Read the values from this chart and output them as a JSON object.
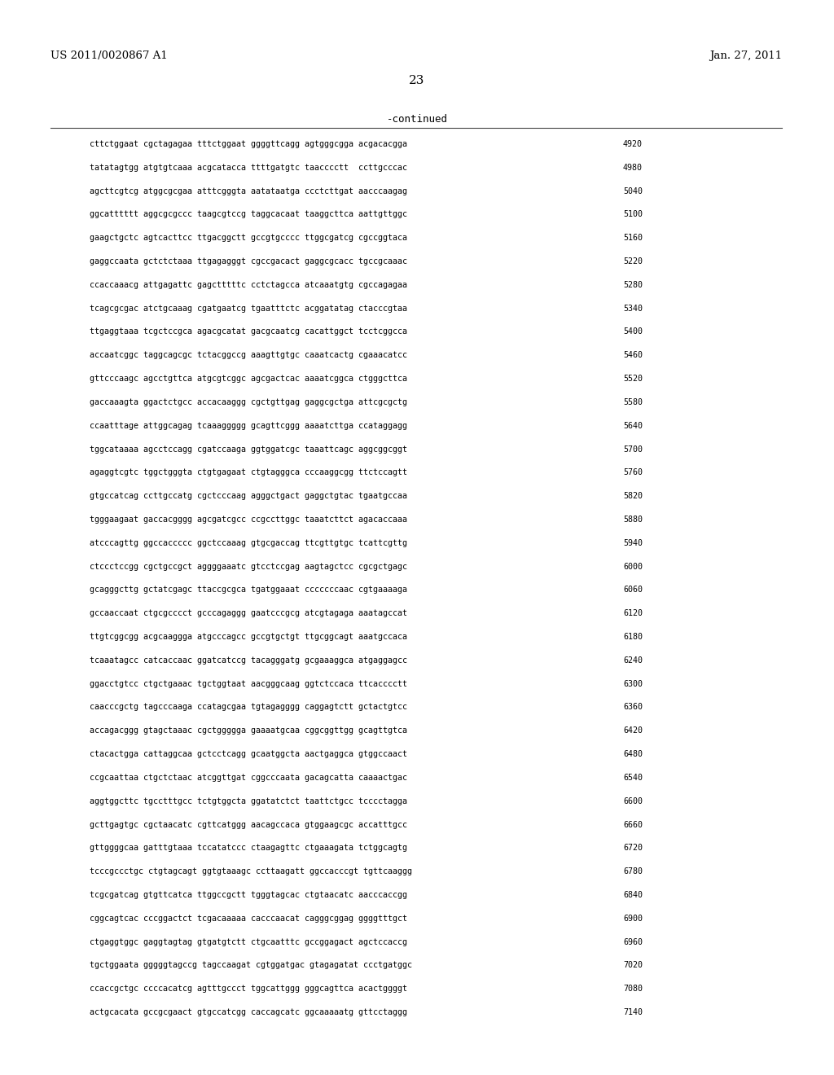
{
  "header_left": "US 2011/0020867 A1",
  "header_right": "Jan. 27, 2011",
  "page_number": "23",
  "continued_label": "-continued",
  "background_color": "#ffffff",
  "text_color": "#000000",
  "sequence_lines": [
    [
      "cttctggaat cgctagagaa tttctggaat ggggttcagg agtgggcgga acgacacgga",
      "4920"
    ],
    [
      "tatatagtgg atgtgtcaaa acgcatacca ttttgatgtc taacccctt  ccttgcccac",
      "4980"
    ],
    [
      "agcttcgtcg atggcgcgaa atttcgggta aatataatga ccctcttgat aacccaagag",
      "5040"
    ],
    [
      "ggcatttttt aggcgcgccc taagcgtccg taggcacaat taaggcttca aattgttggc",
      "5100"
    ],
    [
      "gaagctgctc agtcacttcc ttgacggctt gccgtgcccc ttggcgatcg cgccggtaca",
      "5160"
    ],
    [
      "gaggccaata gctctctaaa ttgagagggt cgccgacact gaggcgcacc tgccgcaaac",
      "5220"
    ],
    [
      "ccaccaaacg attgagattc gagctttttc cctctagcca atcaaatgtg cgccagagaa",
      "5280"
    ],
    [
      "tcagcgcgac atctgcaaag cgatgaatcg tgaatttctc acggatatag ctacccgtaa",
      "5340"
    ],
    [
      "ttgaggtaaa tcgctccgca agacgcatat gacgcaatcg cacattggct tcctcggcca",
      "5400"
    ],
    [
      "accaatcggc taggcagcgc tctacggccg aaagttgtgc caaatcactg cgaaacatcc",
      "5460"
    ],
    [
      "gttcccaagc agcctgttca atgcgtcggc agcgactcac aaaatcggca ctgggcttca",
      "5520"
    ],
    [
      "gaccaaagta ggactctgcc accacaaggg cgctgttgag gaggcgctga attcgcgctg",
      "5580"
    ],
    [
      "ccaatttage attggcagag tcaaaggggg gcagttcggg aaaatcttga ccataggagg",
      "5640"
    ],
    [
      "tggcataaaa agcctccagg cgatccaaga ggtggatcgc taaattcagc aggcggcggt",
      "5700"
    ],
    [
      "agaggtcgtc tggctgggta ctgtgagaat ctgtagggca cccaaggcgg ttctccagtt",
      "5760"
    ],
    [
      "gtgccatcag ccttgccatg cgctcccaag agggctgact gaggctgtac tgaatgccaa",
      "5820"
    ],
    [
      "tgggaagaat gaccacgggg agcgatcgcc ccgccttggc taaatcttct agacaccaaa",
      "5880"
    ],
    [
      "atcccagttg ggccaccccc ggctccaaag gtgcgaccag ttcgttgtgc tcattcgttg",
      "5940"
    ],
    [
      "ctccctccgg cgctgccgct aggggaaatc gtcctccgag aagtagctcc cgcgctgagc",
      "6000"
    ],
    [
      "gcagggcttg gctatcgagc ttaccgcgca tgatggaaat cccccccaac cgtgaaaaga",
      "6060"
    ],
    [
      "gccaaccaat ctgcgcccct gcccagaggg gaatcccgcg atcgtagaga aaatagccat",
      "6120"
    ],
    [
      "ttgtcggcgg acgcaaggga atgcccagcc gccgtgctgt ttgcggcagt aaatgccaca",
      "6180"
    ],
    [
      "tcaaatagcc catcaccaac ggatcatccg tacagggatg gcgaaaggca atgaggagcc",
      "6240"
    ],
    [
      "ggacctgtcc ctgctgaaac tgctggtaat aacgggcaag ggtctccaca ttcacccctt",
      "6300"
    ],
    [
      "caacccgctg tagcccaaga ccatagcgaa tgtagagggg caggagtctt gctactgtcc",
      "6360"
    ],
    [
      "accagacggg gtagctaaac cgctggggga gaaaatgcaa cggcggttgg gcagttgtca",
      "6420"
    ],
    [
      "ctacactgga cattaggcaa gctcctcagg gcaatggcta aactgaggca gtggccaact",
      "6480"
    ],
    [
      "ccgcaattaa ctgctctaac atcggttgat cggcccaata gacagcatta caaaactgac",
      "6540"
    ],
    [
      "aggtggcttc tgcctttgcc tctgtggcta ggatatctct taattctgcc tcccctagga",
      "6600"
    ],
    [
      "gcttgagtgc cgctaacatc cgttcatggg aacagccaca gtggaagcgc accatttgcc",
      "6660"
    ],
    [
      "gttggggcaa gatttgtaaa tccatatccc ctaagagttc ctgaaagata tctggcagtg",
      "6720"
    ],
    [
      "tcccgccctgc ctgtagcagt ggtgtaaagc ccttaagatt ggccacccgt tgttcaaggg",
      "6780"
    ],
    [
      "tcgcgatcag gtgttcatca ttggccgctt tgggtagcac ctgtaacatc aacccaccgg",
      "6840"
    ],
    [
      "cggcagtcac cccggactct tcgacaaaaa cacccaacat cagggcggag ggggtttgct",
      "6900"
    ],
    [
      "ctgaggtggc gaggtagtag gtgatgtctt ctgcaatttc gccggagact agctccaccg",
      "6960"
    ],
    [
      "tgctggaata gggggtagccg tagccaagat cgtggatgac gtagagatat ccctgatggc",
      "7020"
    ],
    [
      "ccaccgctgc ccccacatcg agtttgccct tggcattggg gggcagttca acactggggt",
      "7080"
    ],
    [
      "actgcacata gccgcgaact gtgccatcgg caccagcatc ggcaaaaatg gttcctaggg",
      "7140"
    ]
  ]
}
